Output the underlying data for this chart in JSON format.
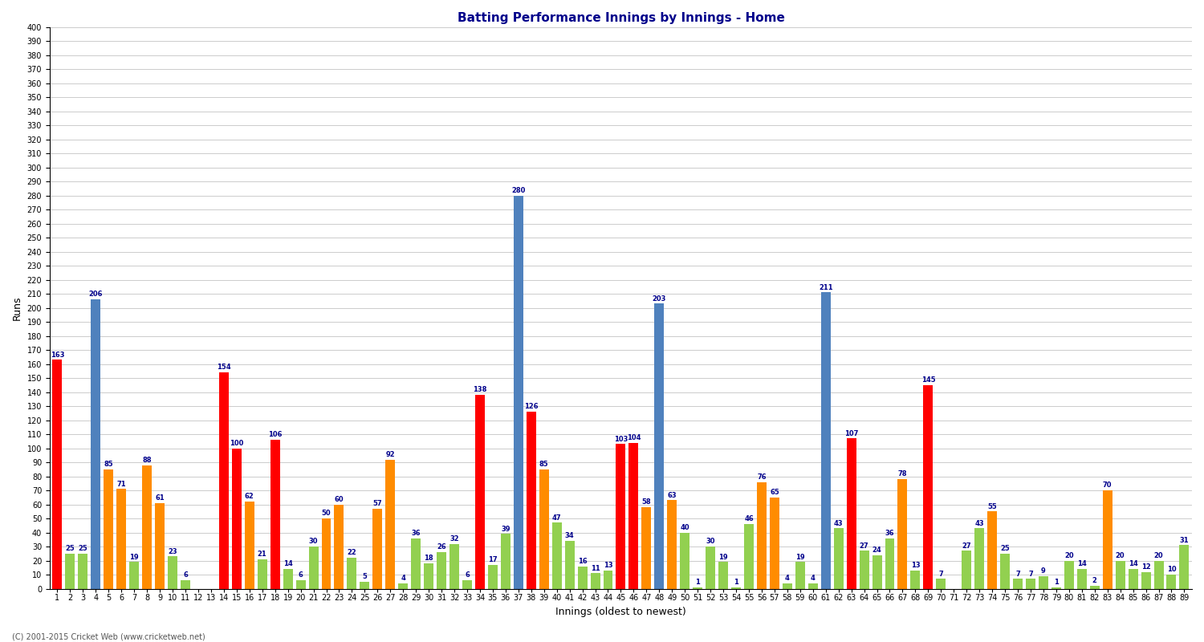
{
  "title": "Batting Performance Innings by Innings - Home",
  "xlabel": "Innings (oldest to newest)",
  "ylabel": "Runs",
  "ylim": [
    0,
    400
  ],
  "yticks": [
    0,
    10,
    20,
    30,
    40,
    50,
    60,
    70,
    80,
    90,
    100,
    110,
    120,
    130,
    140,
    150,
    160,
    170,
    180,
    190,
    200,
    210,
    220,
    230,
    240,
    250,
    260,
    270,
    280,
    290,
    300,
    310,
    320,
    330,
    340,
    350,
    360,
    370,
    380,
    390,
    400
  ],
  "background_color": "#ffffff",
  "grid_color": "#cccccc",
  "innings": [
    {
      "n": 1,
      "val": 163,
      "color": "red"
    },
    {
      "n": 2,
      "val": 25,
      "color": "green"
    },
    {
      "n": 3,
      "val": 25,
      "color": "green"
    },
    {
      "n": 4,
      "val": 206,
      "color": "blue"
    },
    {
      "n": 5,
      "val": 85,
      "color": "orange"
    },
    {
      "n": 6,
      "val": 71,
      "color": "orange"
    },
    {
      "n": 7,
      "val": 19,
      "color": "green"
    },
    {
      "n": 8,
      "val": 88,
      "color": "orange"
    },
    {
      "n": 9,
      "val": 61,
      "color": "orange"
    },
    {
      "n": 10,
      "val": 23,
      "color": "green"
    },
    {
      "n": 11,
      "val": 6,
      "color": "green"
    },
    {
      "n": 12,
      "val": 0,
      "color": "green"
    },
    {
      "n": 13,
      "val": 0,
      "color": "green"
    },
    {
      "n": 14,
      "val": 154,
      "color": "red"
    },
    {
      "n": 15,
      "val": 100,
      "color": "red"
    },
    {
      "n": 16,
      "val": 62,
      "color": "orange"
    },
    {
      "n": 17,
      "val": 21,
      "color": "green"
    },
    {
      "n": 18,
      "val": 106,
      "color": "red"
    },
    {
      "n": 19,
      "val": 14,
      "color": "green"
    },
    {
      "n": 20,
      "val": 6,
      "color": "green"
    },
    {
      "n": 21,
      "val": 30,
      "color": "green"
    },
    {
      "n": 22,
      "val": 50,
      "color": "orange"
    },
    {
      "n": 23,
      "val": 60,
      "color": "orange"
    },
    {
      "n": 24,
      "val": 22,
      "color": "green"
    },
    {
      "n": 25,
      "val": 5,
      "color": "green"
    },
    {
      "n": 26,
      "val": 57,
      "color": "orange"
    },
    {
      "n": 27,
      "val": 92,
      "color": "orange"
    },
    {
      "n": 28,
      "val": 4,
      "color": "green"
    },
    {
      "n": 29,
      "val": 36,
      "color": "green"
    },
    {
      "n": 30,
      "val": 18,
      "color": "green"
    },
    {
      "n": 31,
      "val": 26,
      "color": "green"
    },
    {
      "n": 32,
      "val": 32,
      "color": "green"
    },
    {
      "n": 33,
      "val": 6,
      "color": "green"
    },
    {
      "n": 34,
      "val": 138,
      "color": "red"
    },
    {
      "n": 35,
      "val": 17,
      "color": "green"
    },
    {
      "n": 36,
      "val": 39,
      "color": "green"
    },
    {
      "n": 37,
      "val": 280,
      "color": "blue"
    },
    {
      "n": 38,
      "val": 126,
      "color": "red"
    },
    {
      "n": 39,
      "val": 85,
      "color": "orange"
    },
    {
      "n": 40,
      "val": 47,
      "color": "green"
    },
    {
      "n": 41,
      "val": 34,
      "color": "green"
    },
    {
      "n": 42,
      "val": 16,
      "color": "green"
    },
    {
      "n": 43,
      "val": 11,
      "color": "green"
    },
    {
      "n": 44,
      "val": 13,
      "color": "green"
    },
    {
      "n": 45,
      "val": 103,
      "color": "red"
    },
    {
      "n": 46,
      "val": 104,
      "color": "red"
    },
    {
      "n": 47,
      "val": 58,
      "color": "orange"
    },
    {
      "n": 48,
      "val": 203,
      "color": "blue"
    },
    {
      "n": 49,
      "val": 63,
      "color": "orange"
    },
    {
      "n": 50,
      "val": 40,
      "color": "green"
    },
    {
      "n": 51,
      "val": 1,
      "color": "green"
    },
    {
      "n": 52,
      "val": 30,
      "color": "green"
    },
    {
      "n": 53,
      "val": 19,
      "color": "green"
    },
    {
      "n": 54,
      "val": 1,
      "color": "green"
    },
    {
      "n": 55,
      "val": 46,
      "color": "green"
    },
    {
      "n": 56,
      "val": 76,
      "color": "orange"
    },
    {
      "n": 57,
      "val": 65,
      "color": "orange"
    },
    {
      "n": 58,
      "val": 4,
      "color": "green"
    },
    {
      "n": 59,
      "val": 19,
      "color": "green"
    },
    {
      "n": 60,
      "val": 4,
      "color": "green"
    },
    {
      "n": 61,
      "val": 211,
      "color": "blue"
    },
    {
      "n": 62,
      "val": 43,
      "color": "green"
    },
    {
      "n": 63,
      "val": 107,
      "color": "red"
    },
    {
      "n": 64,
      "val": 27,
      "color": "green"
    },
    {
      "n": 65,
      "val": 24,
      "color": "green"
    },
    {
      "n": 66,
      "val": 36,
      "color": "green"
    },
    {
      "n": 67,
      "val": 78,
      "color": "orange"
    },
    {
      "n": 68,
      "val": 13,
      "color": "green"
    },
    {
      "n": 69,
      "val": 145,
      "color": "red"
    },
    {
      "n": 70,
      "val": 7,
      "color": "green"
    },
    {
      "n": 71,
      "val": 0,
      "color": "green"
    },
    {
      "n": 72,
      "val": 27,
      "color": "green"
    },
    {
      "n": 73,
      "val": 43,
      "color": "green"
    },
    {
      "n": 74,
      "val": 55,
      "color": "orange"
    },
    {
      "n": 75,
      "val": 25,
      "color": "green"
    },
    {
      "n": 76,
      "val": 7,
      "color": "green"
    },
    {
      "n": 77,
      "val": 7,
      "color": "green"
    },
    {
      "n": 78,
      "val": 9,
      "color": "green"
    },
    {
      "n": 79,
      "val": 1,
      "color": "green"
    },
    {
      "n": 80,
      "val": 20,
      "color": "green"
    },
    {
      "n": 81,
      "val": 14,
      "color": "green"
    },
    {
      "n": 82,
      "val": 2,
      "color": "green"
    },
    {
      "n": 83,
      "val": 70,
      "color": "orange"
    },
    {
      "n": 84,
      "val": 20,
      "color": "green"
    },
    {
      "n": 85,
      "val": 14,
      "color": "green"
    },
    {
      "n": 86,
      "val": 12,
      "color": "green"
    },
    {
      "n": 87,
      "val": 20,
      "color": "green"
    },
    {
      "n": 88,
      "val": 10,
      "color": "green"
    },
    {
      "n": 89,
      "val": 31,
      "color": "green"
    }
  ],
  "color_map": {
    "blue": "#4f81bd",
    "red": "#ff0000",
    "orange": "#ff8c00",
    "green": "#92d050"
  },
  "bar_width": 0.75,
  "title_fontsize": 11,
  "axis_fontsize": 9,
  "tick_fontsize": 7,
  "label_fontsize": 6,
  "footer": "(C) 2001-2015 Cricket Web (www.cricketweb.net)"
}
